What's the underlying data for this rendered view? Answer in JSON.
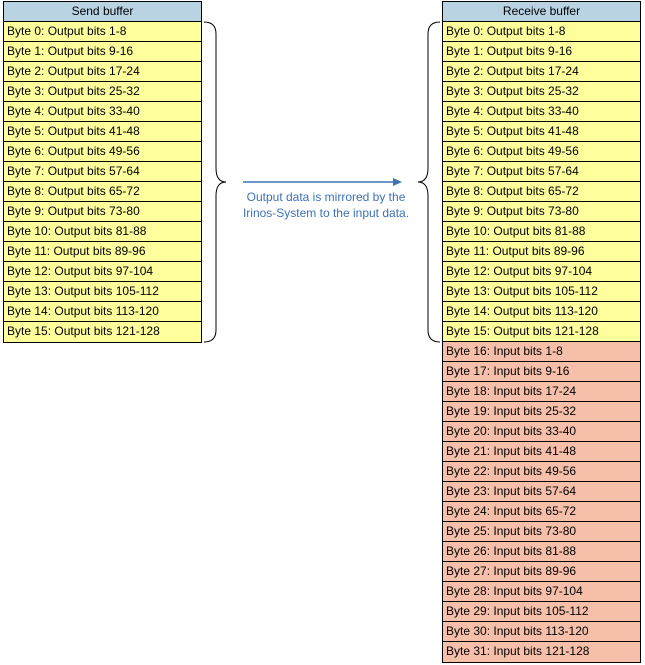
{
  "send_buffer": {
    "title": "Send buffer",
    "rows": [
      "Byte 0: Output bits 1-8",
      "Byte 1: Output bits 9-16",
      "Byte 2: Output bits 17-24",
      "Byte 3: Output bits 25-32",
      "Byte 4: Output bits 33-40",
      "Byte 5: Output bits 41-48",
      "Byte 6: Output bits 49-56",
      "Byte 7: Output bits 57-64",
      "Byte 8: Output bits 65-72",
      "Byte 9: Output bits 73-80",
      "Byte 10: Output bits 81-88",
      "Byte 11: Output bits 89-96",
      "Byte 12: Output bits 97-104",
      "Byte 13: Output bits 105-112",
      "Byte 14: Output bits 113-120",
      "Byte 15: Output bits 121-128"
    ]
  },
  "receive_buffer": {
    "title": "Receive buffer",
    "output_rows": [
      "Byte 0: Output bits 1-8",
      "Byte 1: Output bits 9-16",
      "Byte 2: Output bits 17-24",
      "Byte 3: Output bits 25-32",
      "Byte 4: Output bits 33-40",
      "Byte 5: Output bits 41-48",
      "Byte 6: Output bits 49-56",
      "Byte 7: Output bits 57-64",
      "Byte 8: Output bits 65-72",
      "Byte 9: Output bits 73-80",
      "Byte 10: Output bits 81-88",
      "Byte 11: Output bits 89-96",
      "Byte 12: Output bits 97-104",
      "Byte 13: Output bits 105-112",
      "Byte 14: Output bits 113-120",
      "Byte 15: Output bits 121-128"
    ],
    "input_rows": [
      "Byte 16: Input bits 1-8",
      "Byte 17: Input bits 9-16",
      "Byte 18: Input bits 17-24",
      "Byte 19: Input bits 25-32",
      "Byte 20: Input bits 33-40",
      "Byte 21: Input bits 41-48",
      "Byte 22: Input bits 49-56",
      "Byte 23: Input bits 57-64",
      "Byte 24: Input bits 65-72",
      "Byte 25: Input bits 73-80",
      "Byte 26: Input bits 81-88",
      "Byte 27: Input bits 89-96",
      "Byte 28: Input bits 97-104",
      "Byte 29: Input bits 105-112",
      "Byte 30: Input bits 113-120",
      "Byte 31: Input bits 121-128"
    ]
  },
  "arrow_caption": "Output data is mirrored by the Irinos-System to the input data.",
  "colors": {
    "header": "#b9d3e3",
    "output_row": "#fefe9c",
    "input_row": "#f6bfa9",
    "arrow": "#3d72b4"
  }
}
